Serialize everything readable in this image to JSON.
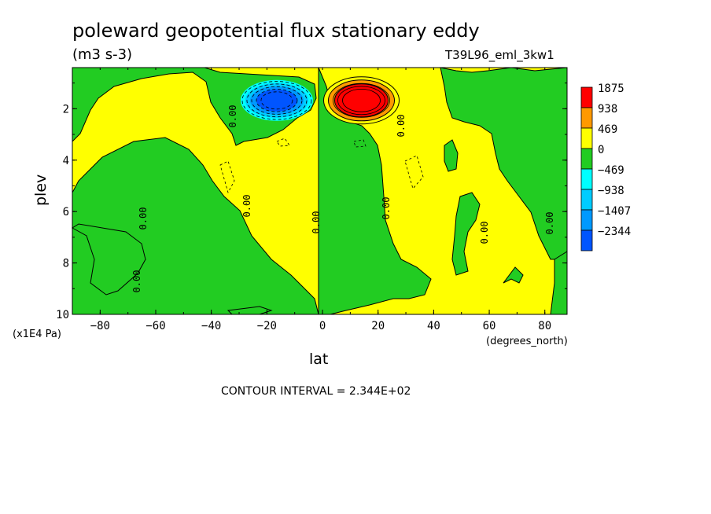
{
  "title": "poleward geopotential flux stationary eddy",
  "units": "(m3 s-3)",
  "run_label": "T39L96_eml_3kw1",
  "contour_interval": "CONTOUR INTERVAL = 2.344E+02",
  "chart_data": {
    "type": "heatmap",
    "subtype": "filled-contour",
    "xlabel": "lat",
    "x_units": "(degrees_north)",
    "ylabel": "plev",
    "y_units": "(x1E4 Pa)",
    "xlim": [
      -90,
      88
    ],
    "ylim": [
      10,
      0.4
    ],
    "x_ticks": [
      -80,
      -60,
      -40,
      -20,
      0,
      20,
      40,
      60,
      80
    ],
    "y_ticks": [
      2,
      4,
      6,
      8,
      10
    ],
    "contour_label": "0.00",
    "legend": {
      "placement": "right",
      "levels": [
        "1875",
        "938",
        "469",
        "0",
        "-469",
        "-938",
        "-1407",
        "-2344"
      ],
      "colors": [
        "#ff0000",
        "#ff9900",
        "#ffff00",
        "#22cc22",
        "#00ffff",
        "#00ccff",
        "#0099ff",
        "#0055ff"
      ]
    },
    "features": [
      {
        "kind": "minimum",
        "lat": -17,
        "plev": 1.8,
        "value": -2344
      },
      {
        "kind": "maximum",
        "lat": 14,
        "plev": 1.8,
        "value": 1875
      }
    ]
  }
}
